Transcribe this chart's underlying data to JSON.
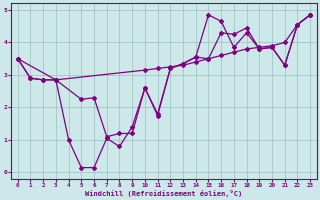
{
  "xlabel": "Windchill (Refroidissement éolien,°C)",
  "bg_color": "#cce8e8",
  "line_color": "#800080",
  "grid_color": "#9bbfbf",
  "xlim": [
    -0.5,
    23.5
  ],
  "ylim": [
    -0.2,
    5.2
  ],
  "xticks": [
    0,
    1,
    2,
    3,
    4,
    5,
    6,
    7,
    8,
    9,
    10,
    11,
    12,
    13,
    14,
    15,
    16,
    17,
    18,
    19,
    20,
    21,
    22,
    23
  ],
  "yticks": [
    0,
    1,
    2,
    3,
    4,
    5
  ],
  "line1_x": [
    0,
    1,
    2,
    3,
    10,
    11,
    12,
    13,
    14,
    15,
    16,
    17,
    18,
    19,
    20,
    21,
    22,
    23
  ],
  "line1_y": [
    3.5,
    2.9,
    2.85,
    2.85,
    3.15,
    3.2,
    3.25,
    3.3,
    3.4,
    3.5,
    3.6,
    3.7,
    3.8,
    3.85,
    3.9,
    4.0,
    4.55,
    4.85
  ],
  "line2_x": [
    0,
    1,
    2,
    3,
    4,
    5,
    6,
    7,
    8,
    9,
    10,
    11,
    12,
    13,
    14,
    15,
    16,
    17,
    18,
    19,
    20,
    21,
    22,
    23
  ],
  "line2_y": [
    3.5,
    2.9,
    2.85,
    2.85,
    1.0,
    0.15,
    0.15,
    1.05,
    0.8,
    1.4,
    2.6,
    1.75,
    3.2,
    3.35,
    3.55,
    4.85,
    4.65,
    3.85,
    4.3,
    3.8,
    3.85,
    3.3,
    4.55,
    4.85
  ],
  "line3_x": [
    0,
    3,
    5,
    6,
    7,
    8,
    9,
    10,
    11,
    12,
    13,
    14,
    15,
    16,
    17,
    18,
    19,
    20,
    21,
    22,
    23
  ],
  "line3_y": [
    3.5,
    2.85,
    2.25,
    2.3,
    1.1,
    1.2,
    1.2,
    2.6,
    1.8,
    3.2,
    3.35,
    3.55,
    3.5,
    4.3,
    4.25,
    4.45,
    3.8,
    3.85,
    3.3,
    4.55,
    4.85
  ]
}
